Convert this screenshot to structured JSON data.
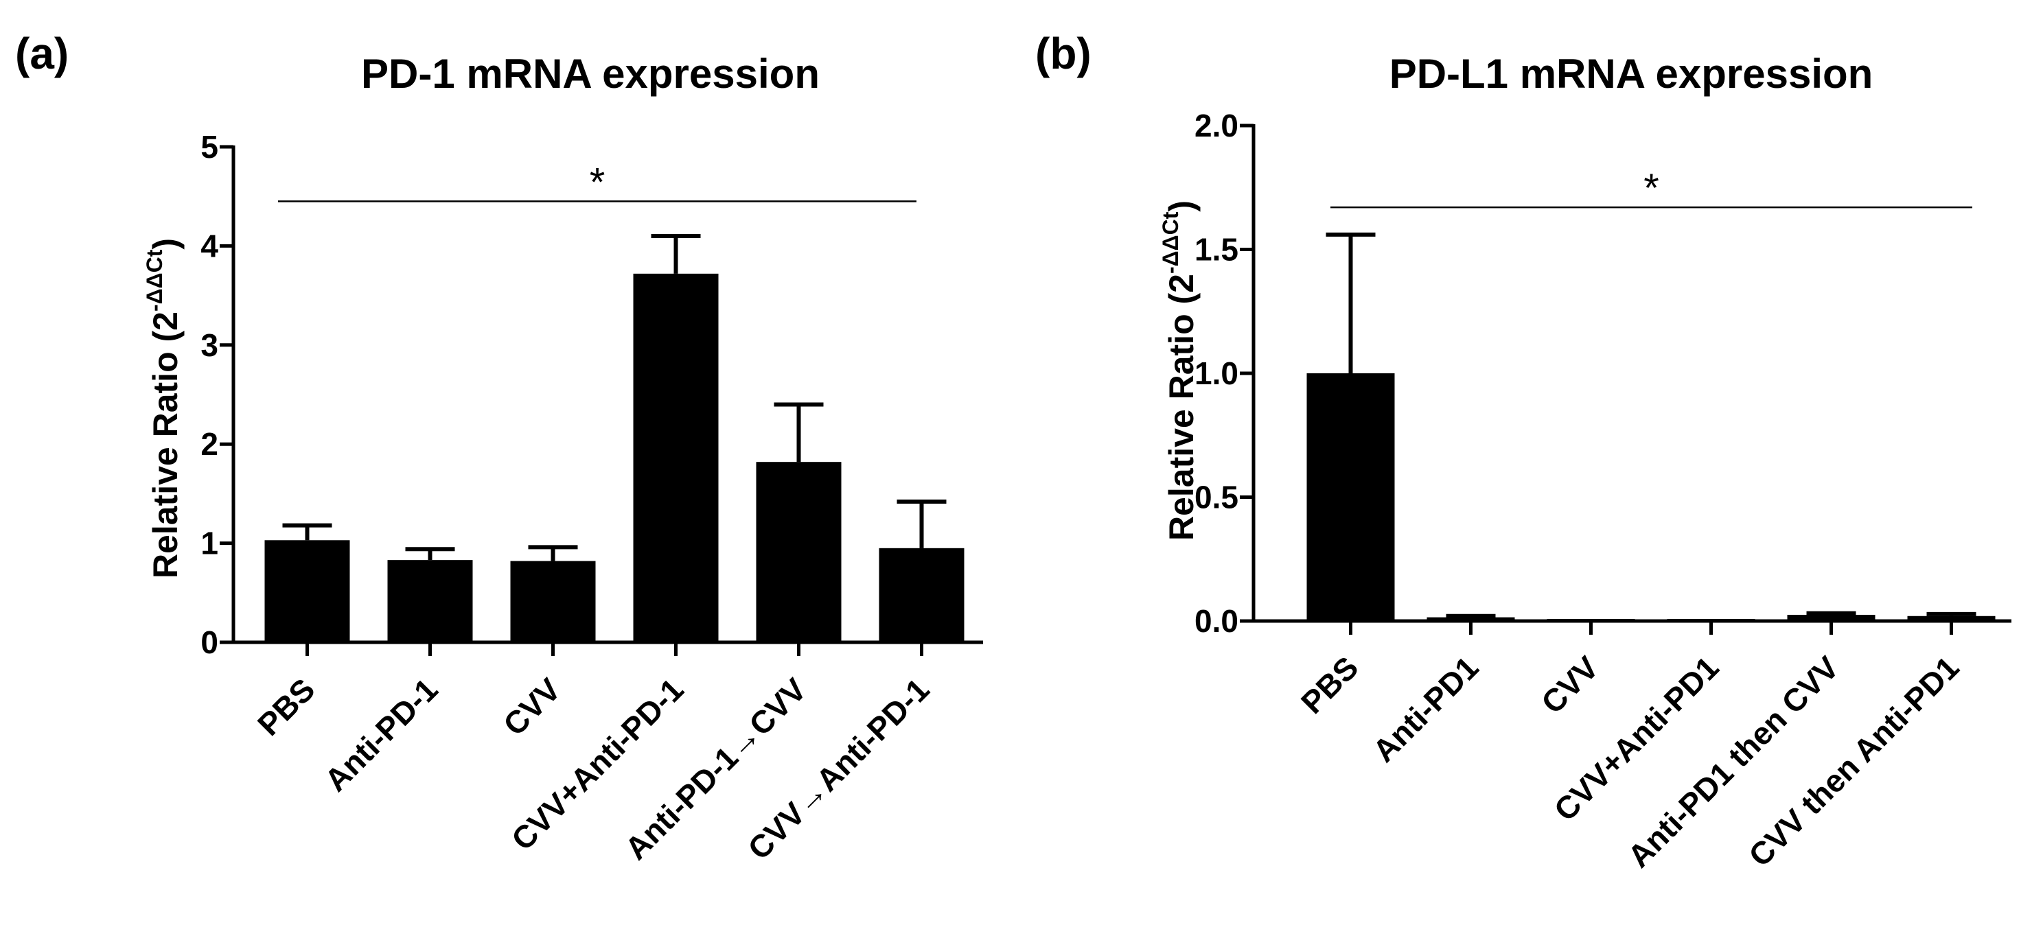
{
  "chart_data": [
    {
      "type": "bar",
      "panel_label": "(a)",
      "title": "PD-1 mRNA expression",
      "ylabel": "Relative Ratio (2",
      "ylabel_sup": "-ΔΔCt",
      "ylabel_close": ")",
      "xlabel": "",
      "ylim": [
        0,
        5
      ],
      "yticks": [
        "0",
        "1",
        "2",
        "3",
        "4",
        "5"
      ],
      "categories": [
        "PBS",
        "Anti-PD-1",
        "CVV",
        "CVV+Anti-PD-1",
        "Anti-PD-1→CVV",
        "CVV→Anti-PD-1"
      ],
      "values": [
        1.03,
        0.83,
        0.82,
        3.72,
        1.82,
        0.95
      ],
      "errors": [
        0.15,
        0.11,
        0.14,
        0.38,
        0.58,
        0.47
      ],
      "significance": {
        "label": "*",
        "y": 4.45
      }
    },
    {
      "type": "bar",
      "panel_label": "(b)",
      "title": "PD-L1 mRNA expression",
      "ylabel": "Relative Ratio (2",
      "ylabel_sup": "-ΔΔCt",
      "ylabel_close": ")",
      "xlabel": "",
      "ylim": [
        0,
        2.0
      ],
      "yticks": [
        "0.0",
        "0.5",
        "1.0",
        "1.5",
        "2.0"
      ],
      "categories": [
        "PBS",
        "Anti-PD1",
        "CVV",
        "CVV+Anti-PD1",
        "Anti-PD1 then CVV",
        "CVV then Anti-PD1"
      ],
      "values": [
        1.0,
        0.015,
        0.002,
        0.002,
        0.025,
        0.02
      ],
      "errors": [
        0.56,
        0.005,
        0.0,
        0.0,
        0.006,
        0.008
      ],
      "significance": {
        "label": "*",
        "y": 1.67
      }
    }
  ]
}
